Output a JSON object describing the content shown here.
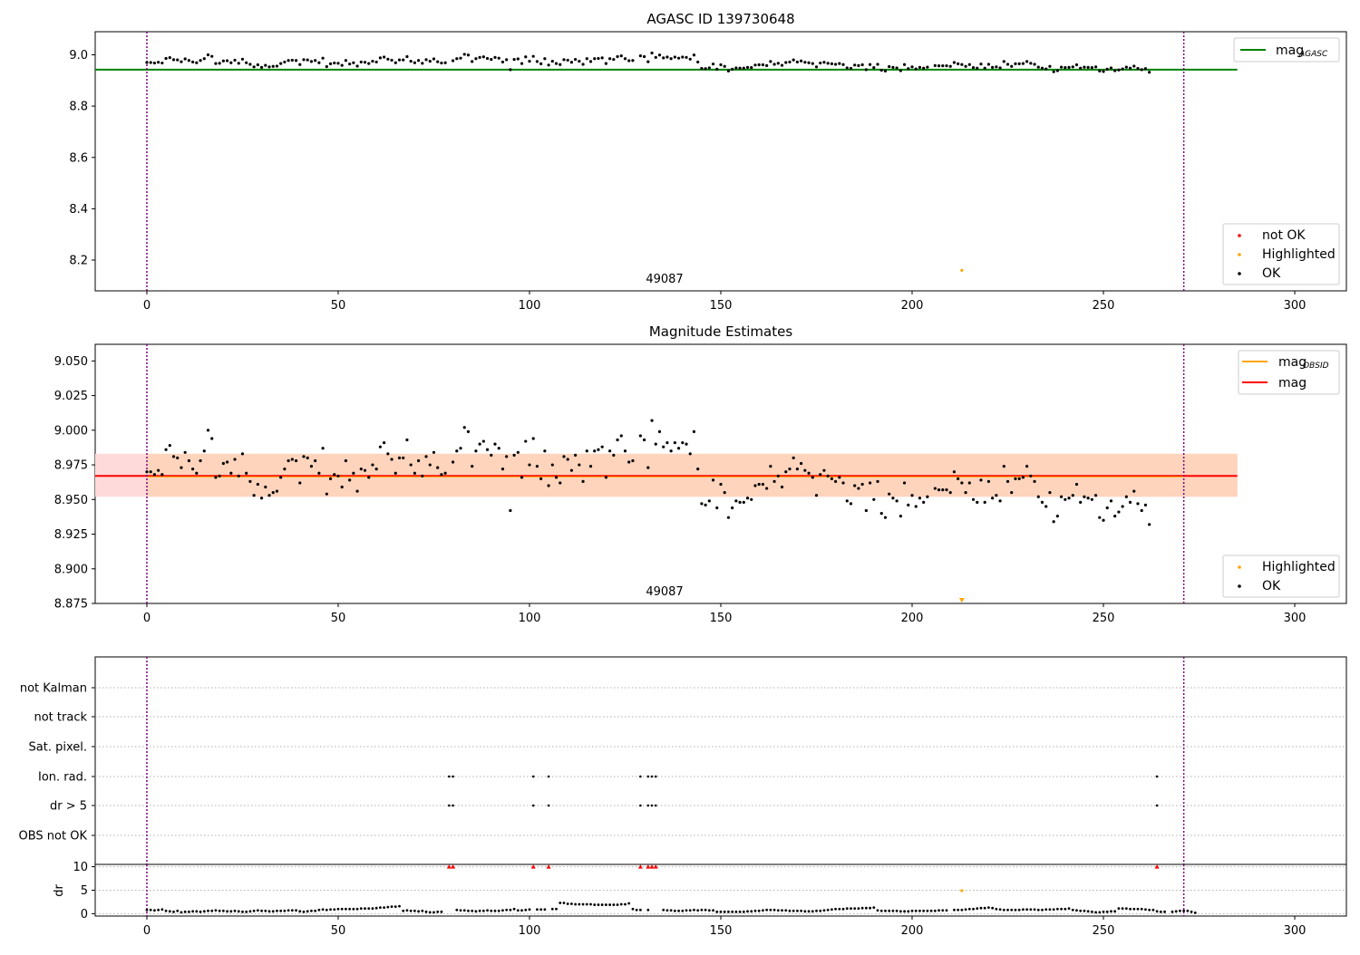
{
  "colors": {
    "ok": "#000000",
    "not_ok": "#ff0000",
    "highlighted": "#ffa500",
    "agasc_line": "#008000",
    "obsid_line": "#ffa500",
    "mag_line": "#ff0000",
    "band_fill": "#ffdada",
    "band_inner_fill": "#ffd3b8",
    "vline": "#800080",
    "grid": "#b0b0b0"
  },
  "chart_data": [
    {
      "id": "top",
      "type": "scatter",
      "title": "AGASC ID 139730648",
      "xlim": [
        -13.5,
        313.5
      ],
      "ylim": [
        8.08,
        9.09
      ],
      "xticks": [
        "0",
        "50",
        "100",
        "150",
        "200",
        "250",
        "300"
      ],
      "yticks": [
        "8.2",
        "8.4",
        "8.6",
        "8.8",
        "9.0"
      ],
      "vlines": [
        0,
        271
      ],
      "hline": {
        "name": "mag",
        "subscript": "AGASC",
        "y": 8.942,
        "x_from": -13.5,
        "x_to": 285
      },
      "annotation": {
        "text": "49087",
        "x": 135,
        "y": 8.11
      },
      "highlighted_points": [
        {
          "x": 213,
          "y": 8.16
        }
      ],
      "ok_series": "shared",
      "legend_line": {
        "label": "mag",
        "subscript": "AGASC"
      },
      "legend_points": [
        {
          "label": "not OK",
          "color": "#ff0000"
        },
        {
          "label": "Highlighted",
          "color": "#ffa500"
        },
        {
          "label": "OK",
          "color": "#000000"
        }
      ]
    },
    {
      "id": "middle",
      "type": "scatter",
      "title": "Magnitude Estimates",
      "xlim": [
        -13.5,
        313.5
      ],
      "ylim": [
        8.875,
        9.062
      ],
      "xticks": [
        "0",
        "50",
        "100",
        "150",
        "200",
        "250",
        "300"
      ],
      "yticks": [
        "8.875",
        "8.900",
        "8.925",
        "8.950",
        "8.975",
        "9.000",
        "9.025",
        "9.050"
      ],
      "vlines": [
        0,
        271
      ],
      "band": {
        "y_low": 8.952,
        "y_high": 8.983,
        "x_from": -13.5,
        "x_to": 285
      },
      "mag_line": {
        "y": 8.967,
        "x_from": -13.5,
        "x_to": 285
      },
      "annotation": {
        "text": "49087",
        "x": 135,
        "y": 8.879
      },
      "highlighted_marker": {
        "x": 213,
        "y": 8.877
      },
      "ok_series": "shared",
      "legend_lines": [
        {
          "label": "mag",
          "subscript": "OBSID",
          "color": "#ffa500"
        },
        {
          "label": "mag",
          "subscript": "",
          "color": "#ff0000"
        }
      ],
      "legend_points": [
        {
          "label": "Highlighted",
          "color": "#ffa500"
        },
        {
          "label": "OK",
          "color": "#000000"
        }
      ]
    },
    {
      "id": "flags",
      "type": "scatter",
      "xlim": [
        -13.5,
        313.5
      ],
      "categories": [
        "not Kalman",
        "not track",
        "Sat. pixel.",
        "Ion. rad.",
        "dr > 5",
        "OBS not OK"
      ],
      "vlines": [
        0,
        271
      ],
      "flagged": {
        "Ion. rad.": [
          79,
          80,
          101,
          105,
          129,
          131,
          132,
          133,
          264
        ],
        "dr > 5": [
          79,
          80,
          101,
          105,
          129,
          131,
          132,
          133,
          264
        ]
      }
    },
    {
      "id": "dr",
      "type": "scatter",
      "ylabel": "dr",
      "xlim": [
        -13.5,
        313.5
      ],
      "ylim": [
        -0.5,
        10.5
      ],
      "yticks": [
        "0",
        "5",
        "10"
      ],
      "xticks": [
        "0",
        "50",
        "100",
        "150",
        "200",
        "250",
        "300"
      ],
      "vlines": [
        0,
        271
      ],
      "capped_points_x": [
        79,
        80,
        101,
        105,
        129,
        131,
        132,
        133,
        264
      ],
      "highlighted_points": [
        {
          "x": 213,
          "y": 4.9
        }
      ],
      "values": [
        0.8,
        0.8,
        0.7,
        0.8,
        0.9,
        0.6,
        0.5,
        0.4,
        0.6,
        0.3,
        0.4,
        0.4,
        0.5,
        0.5,
        0.4,
        0.5,
        0.6,
        0.6,
        0.7,
        0.6,
        0.6,
        0.5,
        0.5,
        0.6,
        0.5,
        0.4,
        0.4,
        0.5,
        0.6,
        0.7,
        0.6,
        0.6,
        0.5,
        0.5,
        0.6,
        0.6,
        0.6,
        0.7,
        0.7,
        0.7,
        0.5,
        0.4,
        0.5,
        0.6,
        0.6,
        0.8,
        0.9,
        0.8,
        0.9,
        0.9,
        1.0,
        1.0,
        1.0,
        1.0,
        1.0,
        1.0,
        1.1,
        1.1,
        1.1,
        1.1,
        1.2,
        1.3,
        1.3,
        1.4,
        1.5,
        1.5,
        1.6,
        0.6,
        0.7,
        0.6,
        0.6,
        0.5,
        0.6,
        0.4,
        0.3,
        0.3,
        0.4,
        0.4,
        null,
        null,
        null,
        0.8,
        0.7,
        0.7,
        0.6,
        0.6,
        0.5,
        0.6,
        0.6,
        0.7,
        0.6,
        0.6,
        0.6,
        0.7,
        0.8,
        0.8,
        1.0,
        0.7,
        0.7,
        0.8,
        0.9,
        null,
        0.9,
        0.9,
        0.9,
        null,
        1.0,
        1.0,
        2.3,
        2.3,
        2.1,
        2.1,
        2.0,
        2.0,
        2.0,
        2.0,
        2.0,
        1.9,
        1.9,
        1.9,
        1.9,
        1.9,
        1.9,
        1.9,
        2.0,
        2.0,
        2.2,
        1.0,
        0.8,
        0.8,
        null,
        0.8,
        null,
        null,
        null,
        0.8,
        0.7,
        0.7,
        0.6,
        0.6,
        0.6,
        0.7,
        0.7,
        0.8,
        0.7,
        0.8,
        0.8,
        0.7,
        0.7,
        0.4,
        0.4,
        0.4,
        0.4,
        0.4,
        0.4,
        0.4,
        0.4,
        0.5,
        0.5,
        0.6,
        0.6,
        0.7,
        0.8,
        0.8,
        0.8,
        0.7,
        0.7,
        0.7,
        0.6,
        0.6,
        0.6,
        0.6,
        0.5,
        0.5,
        0.5,
        0.6,
        0.6,
        0.7,
        0.8,
        0.9,
        1.0,
        1.0,
        1.0,
        1.1,
        1.1,
        1.1,
        1.1,
        1.2,
        1.2,
        1.2,
        1.3,
        0.7,
        0.6,
        0.6,
        0.6,
        0.6,
        0.6,
        0.5,
        0.5,
        0.5,
        0.6,
        0.6,
        0.6,
        0.6,
        0.6,
        0.6,
        0.6,
        0.7,
        0.7,
        0.7,
        null,
        0.8,
        0.8,
        0.8,
        0.9,
        1.0,
        1.0,
        1.1,
        1.2,
        1.2,
        1.3,
        1.2,
        1.0,
        0.9,
        0.8,
        0.8,
        0.8,
        0.8,
        0.8,
        0.9,
        0.9,
        0.9,
        0.9,
        0.8,
        0.8,
        0.9,
        0.9,
        0.9,
        1.0,
        1.0,
        1.0,
        1.1,
        0.8,
        0.7,
        0.6,
        0.6,
        0.5,
        0.4,
        0.3,
        0.3,
        0.4,
        0.4,
        0.5,
        0.5,
        1.1,
        1.1,
        1.1,
        1.0,
        1.0,
        1.0,
        1.0,
        0.9,
        0.8,
        0.8,
        0.5,
        0.4,
        0.4,
        null,
        0.4,
        0.5,
        0.6,
        0.6,
        0.6,
        0.4,
        0.2
      ]
    }
  ],
  "ok_mag_values": [
    8.97,
    8.97,
    8.968,
    8.971,
    8.968,
    8.986,
    8.989,
    8.981,
    8.98,
    8.973,
    8.984,
    8.978,
    8.972,
    8.969,
    8.978,
    8.985,
    9.0,
    8.994,
    8.966,
    8.967,
    8.976,
    8.977,
    8.969,
    8.979,
    8.967,
    8.983,
    8.969,
    8.963,
    8.953,
    8.961,
    8.951,
    8.959,
    8.953,
    8.955,
    8.956,
    8.966,
    8.972,
    8.978,
    8.979,
    8.978,
    8.962,
    8.981,
    8.98,
    8.974,
    8.978,
    8.969,
    8.987,
    8.954,
    8.965,
    8.968,
    8.967,
    8.959,
    8.978,
    8.964,
    8.969,
    8.956,
    8.972,
    8.971,
    8.966,
    8.975,
    8.972,
    8.988,
    8.991,
    8.983,
    8.979,
    8.969,
    8.98,
    8.98,
    8.993,
    8.975,
    8.969,
    8.978,
    8.967,
    8.981,
    8.975,
    8.984,
    8.973,
    8.968,
    8.969,
    null,
    8.977,
    8.985,
    8.987,
    9.002,
    8.999,
    8.974,
    8.985,
    8.99,
    8.992,
    8.986,
    8.982,
    8.99,
    8.987,
    8.972,
    8.981,
    8.942,
    8.982,
    8.984,
    8.966,
    8.992,
    8.975,
    8.994,
    8.974,
    8.965,
    8.985,
    8.96,
    8.975,
    8.966,
    8.962,
    8.981,
    8.979,
    8.971,
    8.982,
    8.975,
    8.963,
    8.985,
    8.974,
    8.985,
    8.986,
    8.988,
    8.966,
    8.985,
    8.982,
    8.993,
    8.996,
    8.985,
    8.977,
    8.978,
    null,
    8.996,
    8.993,
    8.973,
    9.007,
    8.99,
    8.999,
    8.988,
    8.991,
    8.985,
    8.991,
    8.987,
    8.991,
    8.99,
    8.983,
    8.999,
    8.972,
    8.947,
    8.946,
    8.949,
    8.964,
    8.944,
    8.961,
    8.955,
    8.937,
    8.944,
    8.949,
    8.948,
    8.948,
    8.951,
    8.95,
    8.96,
    8.961,
    8.961,
    8.958,
    8.974,
    8.963,
    8.967,
    8.959,
    8.97,
    8.972,
    8.98,
    8.972,
    8.976,
    8.971,
    8.969,
    8.966,
    8.953,
    8.968,
    8.971,
    8.967,
    8.965,
    8.963,
    8.966,
    8.962,
    8.949,
    8.947,
    8.96,
    8.958,
    8.961,
    8.942,
    8.962,
    8.95,
    8.963,
    8.94,
    8.937,
    8.954,
    8.951,
    8.949,
    8.938,
    8.962,
    8.946,
    8.953,
    8.945,
    8.951,
    8.948,
    8.952,
    null,
    8.958,
    8.957,
    8.957,
    8.957,
    8.955,
    8.97,
    8.965,
    8.962,
    8.955,
    8.962,
    8.95,
    8.948,
    8.964,
    8.948,
    8.963,
    8.951,
    8.953,
    8.949,
    8.974,
    8.963,
    8.955,
    8.965,
    8.965,
    8.966,
    8.974,
    8.967,
    8.963,
    8.952,
    8.948,
    8.945,
    8.955,
    8.934,
    8.938,
    8.952,
    8.95,
    8.951,
    8.953,
    8.961,
    8.948,
    8.952,
    8.951,
    8.95,
    8.953,
    8.937,
    8.935,
    8.944,
    8.949,
    8.938,
    8.941,
    8.945,
    8.952,
    8.948,
    8.956,
    8.947,
    8.942,
    8.946,
    8.932
  ]
}
